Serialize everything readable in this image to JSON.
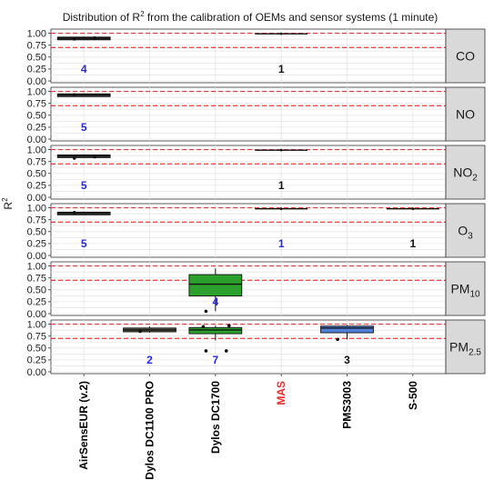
{
  "chart_data": {
    "type": "boxplot",
    "title": "Distribution of R² from the calibration of OEMs and sensor systems (1 minute)",
    "title_parts": {
      "pre": "Distribution of R",
      "sup": "2",
      "post": " from the calibration of OEMs and sensor systems (1 minute)"
    },
    "ylabel": "R²",
    "ylabel_parts": {
      "main": "R",
      "sup": "2"
    },
    "ylim": [
      0,
      1.05
    ],
    "y_ticks": [
      "0.00",
      "0.25",
      "0.50",
      "0.75",
      "1.00"
    ],
    "reference_lines": [
      0.7,
      1.0
    ],
    "grid": true,
    "categories": [
      {
        "label": "AirSensEUR (v.2)",
        "color": "#000000"
      },
      {
        "label": "Dylos DC1100 PRO",
        "color": "#000000"
      },
      {
        "label": "Dylos DC1700",
        "color": "#000000"
      },
      {
        "label": "MAS",
        "color": "#e03030"
      },
      {
        "label": "PMS3003",
        "color": "#000000"
      },
      {
        "label": "S-500",
        "color": "#000000"
      }
    ],
    "panels": [
      {
        "strip": "CO",
        "strip_main": "CO",
        "strip_sub": "",
        "boxes": [
          {
            "cat": 0,
            "q1": 0.89,
            "median": 0.9,
            "q3": 0.92,
            "lo": 0.86,
            "hi": 0.93,
            "fill": "#2a2a2a",
            "outliers": [
              0.88,
              0.9
            ]
          }
        ],
        "counts": [
          {
            "cat": 0,
            "text": "4",
            "color": "#2b2bd0"
          },
          {
            "cat": 3,
            "text": "1",
            "color": "#111111"
          }
        ],
        "singles": [
          {
            "cat": 3,
            "value": 0.99
          }
        ]
      },
      {
        "strip": "NO",
        "strip_main": "NO",
        "strip_sub": "",
        "boxes": [
          {
            "cat": 0,
            "q1": 0.93,
            "median": 0.94,
            "q3": 0.95,
            "lo": 0.92,
            "hi": 0.96,
            "fill": "#2a2a2a",
            "outliers": [
              0.93
            ]
          }
        ],
        "counts": [
          {
            "cat": 0,
            "text": "5",
            "color": "#2b2bd0"
          }
        ],
        "singles": []
      },
      {
        "strip": "NO2",
        "strip_main": "NO",
        "strip_sub": "2",
        "boxes": [
          {
            "cat": 0,
            "q1": 0.86,
            "median": 0.88,
            "q3": 0.89,
            "lo": 0.84,
            "hi": 0.9,
            "fill": "#2a2a2a",
            "outliers": [
              0.82,
              0.85
            ]
          }
        ],
        "counts": [
          {
            "cat": 0,
            "text": "5",
            "color": "#2b2bd0"
          },
          {
            "cat": 3,
            "text": "1",
            "color": "#111111"
          }
        ],
        "singles": [
          {
            "cat": 3,
            "value": 0.99
          }
        ]
      },
      {
        "strip": "O3",
        "strip_main": "O",
        "strip_sub": "3",
        "boxes": [
          {
            "cat": 0,
            "q1": 0.89,
            "median": 0.9,
            "q3": 0.91,
            "lo": 0.88,
            "hi": 0.92,
            "fill": "#2a2a2a",
            "outliers": [
              0.9
            ]
          }
        ],
        "counts": [
          {
            "cat": 0,
            "text": "5",
            "color": "#2b2bd0"
          },
          {
            "cat": 3,
            "text": "1",
            "color": "#2b2bd0"
          },
          {
            "cat": 5,
            "text": "1",
            "color": "#111111"
          }
        ],
        "singles": [
          {
            "cat": 3,
            "value": 0.98
          },
          {
            "cat": 5,
            "value": 0.98
          }
        ]
      },
      {
        "strip": "PM10",
        "strip_main": "PM",
        "strip_sub": "10",
        "boxes": [
          {
            "cat": 2,
            "q1": 0.37,
            "median": 0.62,
            "q3": 0.82,
            "lo": 0.05,
            "hi": 0.95,
            "fill": "#2ca02c",
            "outliers": [
              0.05
            ]
          }
        ],
        "counts": [
          {
            "cat": 2,
            "text": "4",
            "color": "#2b2bd0"
          }
        ],
        "singles": []
      },
      {
        "strip": "PM2.5",
        "strip_main": "PM",
        "strip_sub": "2.5",
        "boxes": [
          {
            "cat": 1,
            "q1": 0.84,
            "median": 0.88,
            "q3": 0.92,
            "lo": 0.82,
            "hi": 0.95,
            "fill": "#5a5a4a",
            "outliers": [
              0.85
            ]
          },
          {
            "cat": 2,
            "q1": 0.8,
            "median": 0.88,
            "q3": 0.93,
            "lo": 0.66,
            "hi": 0.97,
            "fill": "#2ca02c",
            "outliers": [
              0.44,
              0.44,
              0.95,
              0.97
            ]
          },
          {
            "cat": 4,
            "q1": 0.82,
            "median": 0.92,
            "q3": 0.96,
            "lo": 0.68,
            "hi": 0.98,
            "fill": "#4f7fd6",
            "outliers": [
              0.68
            ]
          }
        ],
        "counts": [
          {
            "cat": 1,
            "text": "2",
            "color": "#2b2bd0"
          },
          {
            "cat": 2,
            "text": "7",
            "color": "#2b2bd0"
          },
          {
            "cat": 4,
            "text": "3",
            "color": "#111111"
          }
        ],
        "singles": []
      }
    ]
  }
}
